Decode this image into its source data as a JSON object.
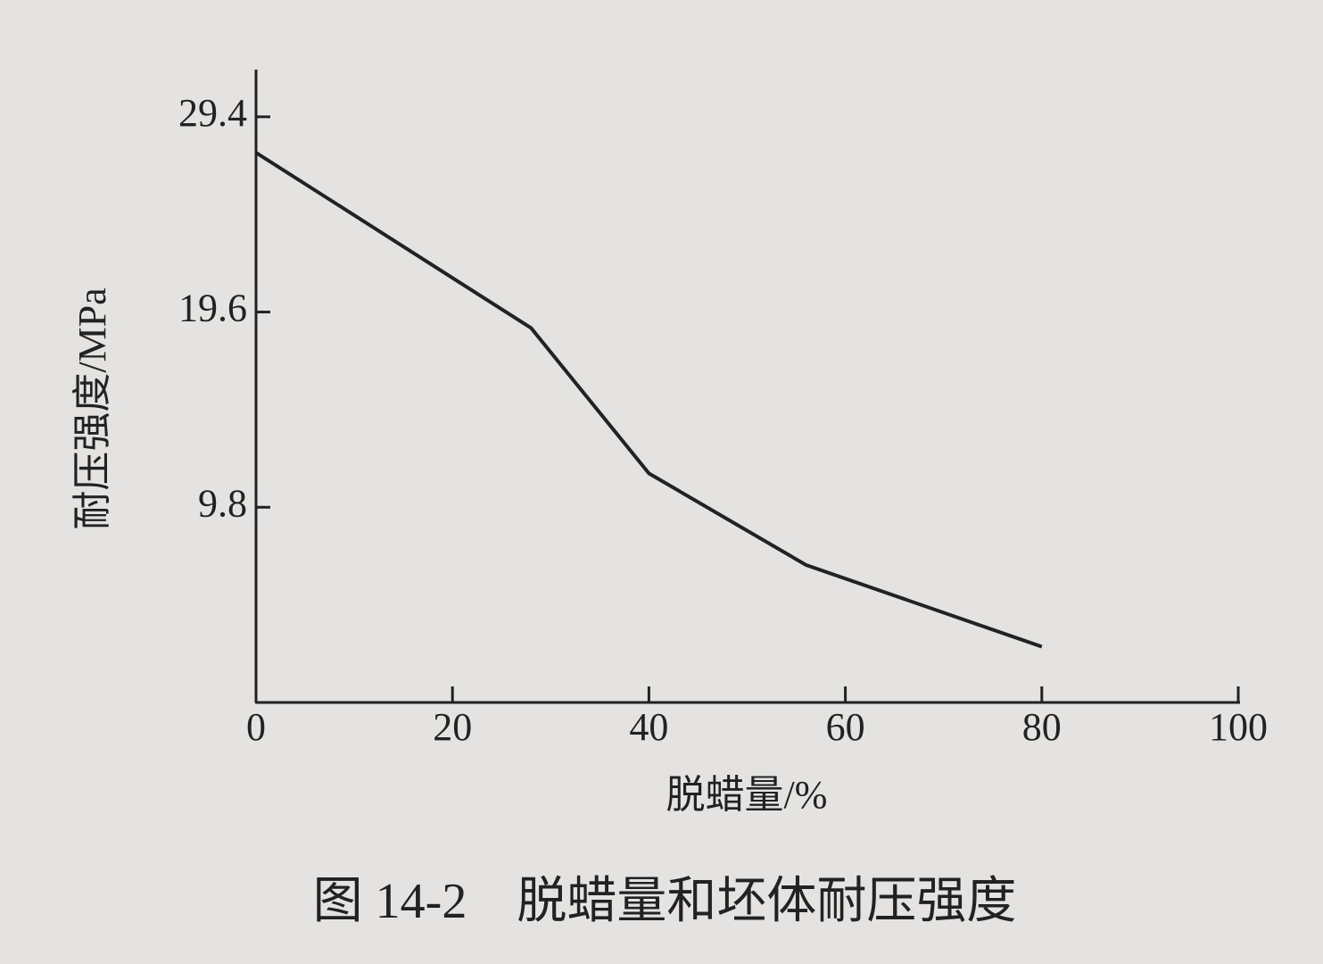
{
  "chart_data": {
    "type": "line",
    "title": "图 14-2　脱蜡量和坯体耐压强度",
    "x_label": "脱蜡量/%",
    "y_label": "耐压强度/MPa",
    "x": [
      0,
      28,
      40,
      56,
      80
    ],
    "series": [
      {
        "name": null,
        "color": "#222222",
        "values": [
          27.6,
          18.8,
          11.5,
          6.9,
          2.8
        ]
      }
    ],
    "xlim": [
      0,
      100
    ],
    "xticks": [
      0,
      20,
      40,
      60,
      80,
      100
    ],
    "ylim": [
      0,
      31.5
    ],
    "yticks": [
      9.8,
      19.6,
      29.4
    ],
    "grid": false
  }
}
